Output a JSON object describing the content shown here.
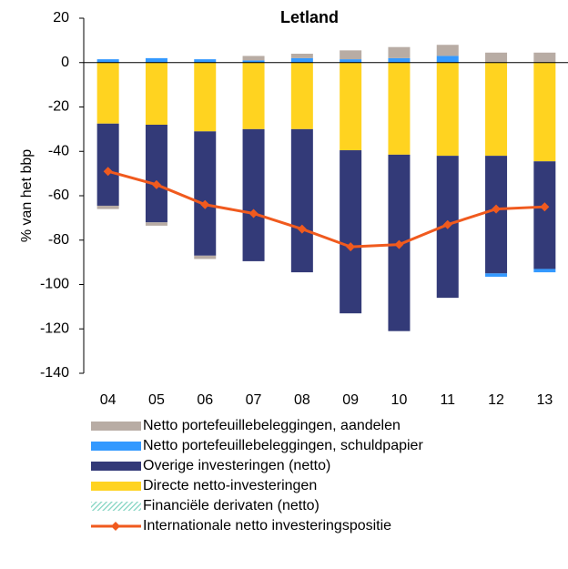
{
  "chart_data": {
    "type": "bar",
    "title": "Letland",
    "y_label": "% van het bbp",
    "categories": [
      "04",
      "05",
      "06",
      "07",
      "08",
      "09",
      "10",
      "11",
      "12",
      "13"
    ],
    "ylim": [
      -140,
      20
    ],
    "yticks": [
      -140,
      -120,
      -100,
      -80,
      -60,
      -40,
      -20,
      0,
      20
    ],
    "series": [
      {
        "name": "Netto portefeuillebeleggingen, aandelen",
        "color": "#b8aca4",
        "values": [
          -1.5,
          -1.5,
          -1.5,
          2,
          2,
          4,
          5,
          5,
          4.5,
          4.5
        ]
      },
      {
        "name": "Netto portefeuillebeleggingen, schuldpapier",
        "color": "#3399ff",
        "values": [
          1.5,
          2,
          1.5,
          1,
          2,
          1.5,
          2,
          3,
          -1.5,
          -1.5
        ]
      },
      {
        "name": "Overige investeringen (netto)",
        "color": "#333a78",
        "values": [
          -37,
          -44,
          -56,
          -59.5,
          -64.5,
          -73.5,
          -79.5,
          -64,
          -53,
          -48.5
        ]
      },
      {
        "name": "Directe netto-investeringen",
        "color": "#ffd320",
        "values": [
          -27.5,
          -28,
          -31,
          -30,
          -30,
          -39.5,
          -41.5,
          -42,
          -42,
          -44.5
        ]
      },
      {
        "name": "Financiële derivaten (netto)",
        "color": "#7fd3c0",
        "values": [
          0,
          0,
          0,
          0,
          0,
          0,
          0,
          0,
          0,
          0
        ]
      },
      {
        "name": "Internationale netto investeringspositie",
        "type": "line",
        "color": "#f05a1e",
        "values": [
          -49,
          -55,
          -64,
          -68,
          -75,
          -83,
          -82,
          -73,
          -66,
          -65
        ]
      }
    ]
  }
}
